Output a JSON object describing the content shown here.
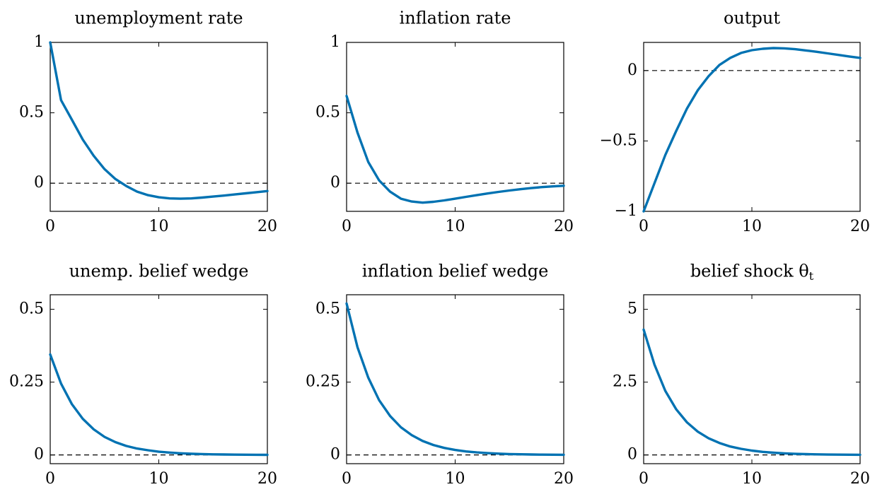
{
  "colors": {
    "series": "#0072b2",
    "axis": "#000000"
  },
  "chart_data": [
    {
      "type": "line",
      "title": "unemployment rate",
      "xlim": [
        0,
        20
      ],
      "ylim": [
        -0.2,
        1
      ],
      "xticks": [
        0,
        10,
        20
      ],
      "xtick_labels": [
        "0",
        "10",
        "20"
      ],
      "yticks": [
        0,
        0.5,
        1
      ],
      "ytick_labels": [
        "0",
        "0.5",
        "1"
      ],
      "zero_line": "dashed",
      "series": [
        {
          "x": [
            0,
            1,
            2,
            3,
            4,
            5,
            6,
            7,
            8,
            9,
            10,
            11,
            12,
            13,
            14,
            15,
            16,
            17,
            18,
            19,
            20
          ],
          "values": [
            1.0,
            0.59,
            0.45,
            0.31,
            0.195,
            0.1,
            0.03,
            -0.02,
            -0.06,
            -0.085,
            -0.1,
            -0.108,
            -0.11,
            -0.108,
            -0.102,
            -0.095,
            -0.088,
            -0.08,
            -0.072,
            -0.064,
            -0.056
          ]
        }
      ]
    },
    {
      "type": "line",
      "title": "inflation rate",
      "xlim": [
        0,
        20
      ],
      "ylim": [
        -0.2,
        1
      ],
      "xticks": [
        0,
        10,
        20
      ],
      "xtick_labels": [
        "0",
        "10",
        "20"
      ],
      "yticks": [
        0,
        0.5,
        1
      ],
      "ytick_labels": [
        "0",
        "0.5",
        "1"
      ],
      "zero_line": "dashed",
      "series": [
        {
          "x": [
            0,
            1,
            2,
            3,
            4,
            5,
            6,
            7,
            8,
            9,
            10,
            11,
            12,
            13,
            14,
            15,
            16,
            17,
            18,
            19,
            20
          ],
          "values": [
            0.62,
            0.36,
            0.15,
            0.02,
            -0.06,
            -0.11,
            -0.13,
            -0.138,
            -0.132,
            -0.122,
            -0.11,
            -0.097,
            -0.085,
            -0.073,
            -0.062,
            -0.052,
            -0.043,
            -0.035,
            -0.028,
            -0.023,
            -0.018
          ]
        }
      ]
    },
    {
      "type": "line",
      "title": "output",
      "xlim": [
        0,
        20
      ],
      "ylim": [
        -1,
        0.2
      ],
      "xticks": [
        0,
        10,
        20
      ],
      "xtick_labels": [
        "0",
        "10",
        "20"
      ],
      "yticks": [
        -1,
        -0.5,
        0
      ],
      "ytick_labels": [
        "−1",
        "−0.5",
        "0"
      ],
      "zero_line": "dashed",
      "series": [
        {
          "x": [
            0,
            1,
            2,
            3,
            4,
            5,
            6,
            7,
            8,
            9,
            10,
            11,
            12,
            13,
            14,
            15,
            16,
            17,
            18,
            19,
            20
          ],
          "values": [
            -1.0,
            -0.8,
            -0.6,
            -0.43,
            -0.27,
            -0.14,
            -0.04,
            0.04,
            0.09,
            0.125,
            0.145,
            0.155,
            0.16,
            0.158,
            0.152,
            0.143,
            0.133,
            0.122,
            0.111,
            0.1,
            0.09
          ]
        }
      ]
    },
    {
      "type": "line",
      "title": "unemp. belief wedge",
      "xlim": [
        0,
        20
      ],
      "ylim": [
        -0.03,
        0.55
      ],
      "xticks": [
        0,
        10,
        20
      ],
      "xtick_labels": [
        "0",
        "10",
        "20"
      ],
      "yticks": [
        0,
        0.25,
        0.5
      ],
      "ytick_labels": [
        "0",
        "0.25",
        "0.5"
      ],
      "zero_line": "dashed",
      "series": [
        {
          "x": [
            0,
            1,
            2,
            3,
            4,
            5,
            6,
            7,
            8,
            9,
            10,
            11,
            12,
            13,
            14,
            15,
            16,
            17,
            18,
            19,
            20
          ],
          "values": [
            0.345,
            0.245,
            0.174,
            0.124,
            0.088,
            0.062,
            0.044,
            0.031,
            0.022,
            0.016,
            0.011,
            0.008,
            0.0057,
            0.004,
            0.0029,
            0.002,
            0.0015,
            0.001,
            0.0007,
            0.0005,
            0.0004
          ]
        }
      ]
    },
    {
      "type": "line",
      "title": "inflation belief wedge",
      "xlim": [
        0,
        20
      ],
      "ylim": [
        -0.03,
        0.55
      ],
      "xticks": [
        0,
        10,
        20
      ],
      "xtick_labels": [
        "0",
        "10",
        "20"
      ],
      "yticks": [
        0,
        0.25,
        0.5
      ],
      "ytick_labels": [
        "0",
        "0.25",
        "0.5"
      ],
      "zero_line": "dashed",
      "series": [
        {
          "x": [
            0,
            1,
            2,
            3,
            4,
            5,
            6,
            7,
            8,
            9,
            10,
            11,
            12,
            13,
            14,
            15,
            16,
            17,
            18,
            19,
            20
          ],
          "values": [
            0.52,
            0.37,
            0.265,
            0.188,
            0.134,
            0.095,
            0.068,
            0.048,
            0.034,
            0.024,
            0.017,
            0.012,
            0.0087,
            0.0062,
            0.0044,
            0.0031,
            0.0022,
            0.0016,
            0.0011,
            0.0008,
            0.0006
          ]
        }
      ]
    },
    {
      "type": "line",
      "title": "belief shock θ",
      "title_subscript": "t",
      "xlim": [
        0,
        20
      ],
      "ylim": [
        -0.3,
        5.5
      ],
      "xticks": [
        0,
        10,
        20
      ],
      "xtick_labels": [
        "0",
        "10",
        "20"
      ],
      "yticks": [
        0,
        2.5,
        5
      ],
      "ytick_labels": [
        "0",
        "2.5",
        "5"
      ],
      "zero_line": "dashed",
      "series": [
        {
          "x": [
            0,
            1,
            2,
            3,
            4,
            5,
            6,
            7,
            8,
            9,
            10,
            11,
            12,
            13,
            14,
            15,
            16,
            17,
            18,
            19,
            20
          ],
          "values": [
            4.3,
            3.1,
            2.2,
            1.57,
            1.12,
            0.8,
            0.57,
            0.41,
            0.29,
            0.21,
            0.15,
            0.105,
            0.075,
            0.054,
            0.038,
            0.027,
            0.02,
            0.014,
            0.01,
            0.007,
            0.005
          ]
        }
      ]
    }
  ]
}
